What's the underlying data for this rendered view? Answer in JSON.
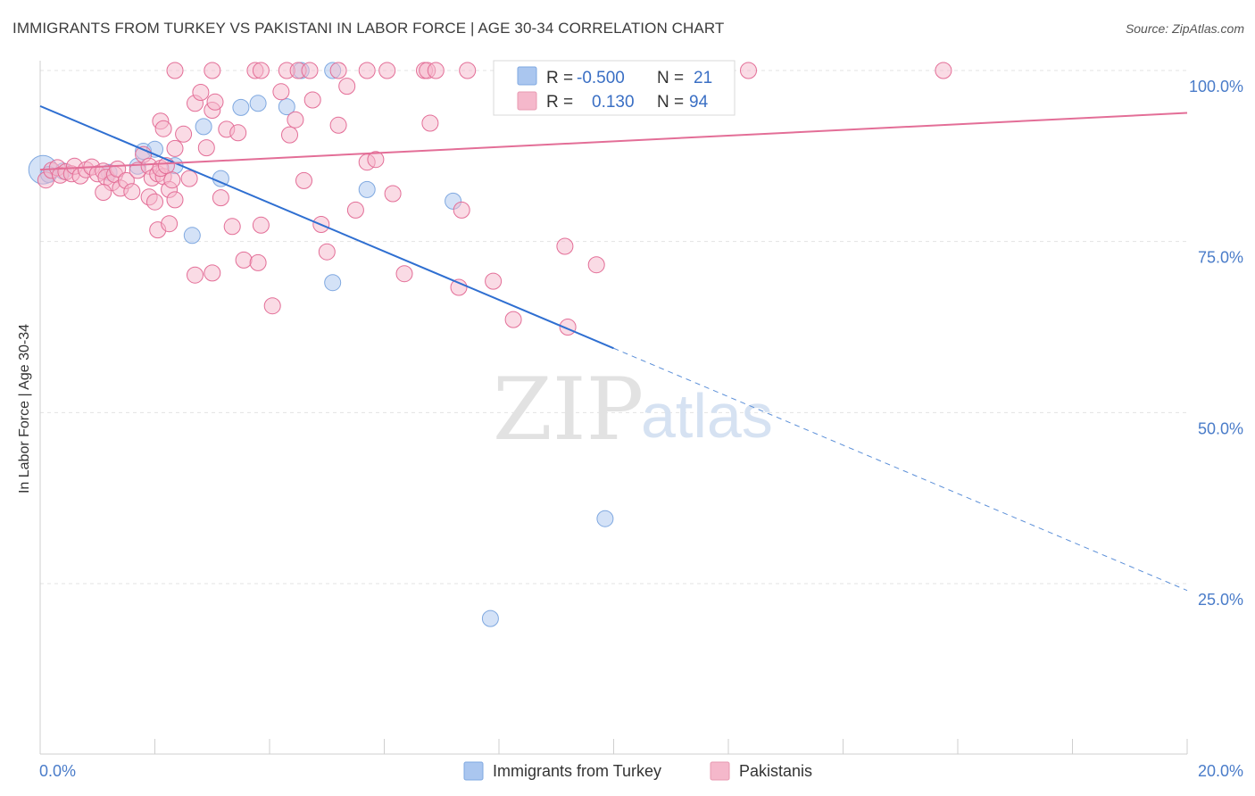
{
  "title": "IMMIGRANTS FROM TURKEY VS PAKISTANI IN LABOR FORCE | AGE 30-34 CORRELATION CHART",
  "source": "Source: ZipAtlas.com",
  "watermark": {
    "zip": "ZIP",
    "atlas": "atlas"
  },
  "legend": {
    "rows": [
      {
        "r_label": "R =",
        "r_value": "-0.500",
        "n_label": "N =",
        "n_value": "21",
        "color": "#aac6ef"
      },
      {
        "r_label": "R =",
        "r_value": "0.130",
        "n_label": "N =",
        "n_value": "94",
        "color": "#f5b8cb"
      }
    ]
  },
  "chart_data": {
    "type": "scatter",
    "title": "IMMIGRANTS FROM TURKEY VS PAKISTANI IN LABOR FORCE | AGE 30-34 CORRELATION CHART",
    "xlabel": "",
    "ylabel": "In Labor Force | Age 30-34",
    "xlim": [
      0,
      20
    ],
    "ylim": [
      0,
      105
    ],
    "x_tick_labels": [
      "0.0%",
      "20.0%"
    ],
    "y_ticks": [
      25,
      50,
      75,
      100
    ],
    "y_tick_labels": [
      "25.0%",
      "50.0%",
      "75.0%",
      "100.0%"
    ],
    "grid": true,
    "legend_position": "bottom",
    "series": [
      {
        "name": "Immigrants from Turkey",
        "color": "#7fa8e0",
        "fill": "#aac6ef",
        "trend": {
          "x0": 0,
          "y0": 94.8,
          "x1": 20,
          "y1": 24.0,
          "solid_until_x": 10
        },
        "points": [
          [
            0.05,
            85.5
          ],
          [
            0.15,
            84.8
          ],
          [
            0.4,
            85.3
          ],
          [
            1.2,
            85.1
          ],
          [
            1.7,
            86.0
          ],
          [
            1.8,
            88.2
          ],
          [
            2.0,
            88.5
          ],
          [
            2.35,
            86.1
          ],
          [
            2.65,
            75.9
          ],
          [
            2.85,
            91.8
          ],
          [
            3.15,
            84.2
          ],
          [
            3.5,
            94.6
          ],
          [
            3.8,
            95.2
          ],
          [
            4.3,
            94.7
          ],
          [
            4.55,
            100.0
          ],
          [
            5.1,
            100.0
          ],
          [
            5.1,
            69.0
          ],
          [
            5.7,
            82.6
          ],
          [
            7.2,
            80.9
          ],
          [
            9.85,
            34.5
          ],
          [
            7.85,
            19.9
          ]
        ]
      },
      {
        "name": "Pakistanis",
        "color": "#e36e97",
        "fill": "#f5b8cb",
        "trend": {
          "x0": 0,
          "y0": 85.5,
          "x1": 20,
          "y1": 93.8
        },
        "points": [
          [
            0.1,
            84.0
          ],
          [
            0.2,
            85.4
          ],
          [
            0.3,
            85.8
          ],
          [
            0.35,
            84.7
          ],
          [
            0.45,
            85.2
          ],
          [
            0.55,
            84.9
          ],
          [
            0.6,
            86.0
          ],
          [
            0.7,
            84.6
          ],
          [
            0.8,
            85.5
          ],
          [
            0.9,
            85.9
          ],
          [
            1.0,
            84.9
          ],
          [
            1.1,
            85.3
          ],
          [
            1.15,
            84.4
          ],
          [
            1.25,
            83.6
          ],
          [
            1.3,
            84.8
          ],
          [
            1.35,
            85.6
          ],
          [
            1.1,
            82.2
          ],
          [
            1.4,
            82.8
          ],
          [
            1.5,
            83.9
          ],
          [
            1.6,
            82.3
          ],
          [
            1.7,
            85.4
          ],
          [
            1.8,
            87.7
          ],
          [
            1.9,
            86.0
          ],
          [
            1.95,
            84.3
          ],
          [
            2.05,
            84.9
          ],
          [
            2.15,
            84.5
          ],
          [
            2.25,
            82.6
          ],
          [
            2.35,
            81.1
          ],
          [
            1.9,
            81.5
          ],
          [
            2.0,
            80.8
          ],
          [
            2.1,
            85.7
          ],
          [
            2.2,
            86.1
          ],
          [
            2.3,
            84.0
          ],
          [
            2.05,
            76.7
          ],
          [
            2.1,
            92.6
          ],
          [
            2.15,
            91.5
          ],
          [
            2.25,
            77.6
          ],
          [
            2.35,
            88.6
          ],
          [
            2.5,
            90.7
          ],
          [
            2.6,
            84.2
          ],
          [
            2.7,
            95.2
          ],
          [
            2.8,
            96.8
          ],
          [
            2.9,
            88.7
          ],
          [
            3.0,
            94.2
          ],
          [
            3.05,
            95.4
          ],
          [
            3.15,
            81.4
          ],
          [
            3.25,
            91.4
          ],
          [
            3.35,
            77.2
          ],
          [
            3.45,
            90.9
          ],
          [
            3.55,
            72.3
          ],
          [
            2.7,
            70.1
          ],
          [
            3.0,
            70.4
          ],
          [
            3.8,
            71.9
          ],
          [
            3.85,
            77.4
          ],
          [
            4.05,
            65.6
          ],
          [
            4.2,
            96.9
          ],
          [
            4.45,
            92.8
          ],
          [
            4.6,
            83.9
          ],
          [
            4.35,
            90.6
          ],
          [
            4.75,
            95.7
          ],
          [
            4.9,
            77.5
          ],
          [
            5.0,
            73.5
          ],
          [
            5.2,
            92.0
          ],
          [
            5.35,
            97.7
          ],
          [
            5.5,
            79.6
          ],
          [
            5.7,
            86.6
          ],
          [
            5.85,
            87.0
          ],
          [
            6.15,
            82.0
          ],
          [
            6.35,
            70.3
          ],
          [
            6.8,
            92.3
          ],
          [
            7.3,
            68.3
          ],
          [
            7.9,
            69.2
          ],
          [
            8.25,
            63.6
          ],
          [
            9.15,
            74.3
          ],
          [
            9.2,
            62.5
          ],
          [
            9.7,
            71.6
          ],
          [
            7.35,
            79.6
          ],
          [
            2.35,
            100.0
          ],
          [
            3.0,
            100.0
          ],
          [
            3.75,
            100.0
          ],
          [
            3.85,
            100.0
          ],
          [
            4.3,
            100.0
          ],
          [
            4.5,
            100.0
          ],
          [
            4.7,
            100.0
          ],
          [
            5.2,
            100.0
          ],
          [
            5.7,
            100.0
          ],
          [
            6.05,
            100.0
          ],
          [
            6.7,
            100.0
          ],
          [
            6.75,
            100.0
          ],
          [
            6.9,
            100.0
          ],
          [
            7.45,
            100.0
          ],
          [
            9.7,
            100.0
          ],
          [
            12.35,
            100.0
          ],
          [
            15.75,
            100.0
          ]
        ]
      }
    ]
  }
}
